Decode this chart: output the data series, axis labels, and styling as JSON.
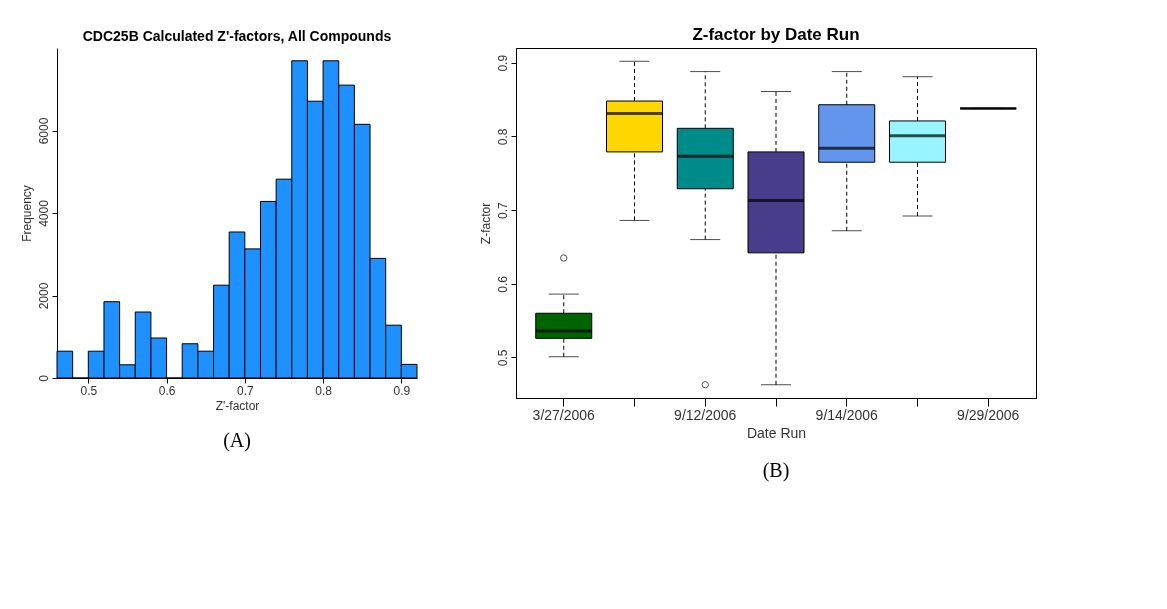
{
  "chart_data": [
    {
      "type": "histogram",
      "title": "CDC25B Calculated Z'-factors, All Compounds",
      "xlabel": "Z'-factor",
      "ylabel": "Frequency",
      "bins": [
        0.46,
        0.48,
        0.5,
        0.52,
        0.54,
        0.56,
        0.58,
        0.6,
        0.62,
        0.64,
        0.66,
        0.68,
        0.7,
        0.72,
        0.74,
        0.76,
        0.78,
        0.8,
        0.82,
        0.84,
        0.86,
        0.88,
        0.9,
        0.92
      ],
      "values": [
        650,
        0,
        650,
        1850,
        320,
        1600,
        970,
        0,
        830,
        650,
        2250,
        3540,
        3130,
        4280,
        4820,
        7690,
        6710,
        7690,
        7100,
        6150,
        2900,
        1280,
        330
      ],
      "color": "#1e90ff",
      "xlim": [
        0.46,
        0.92
      ],
      "xticks": [
        0.5,
        0.6,
        0.7,
        0.8,
        0.9
      ],
      "ylim": [
        0,
        8000
      ],
      "yticks": [
        0,
        2000,
        4000,
        6000
      ],
      "grid": false,
      "annotations": [
        "(A)"
      ]
    },
    {
      "type": "box",
      "title": "Z-factor by Date Run",
      "xlabel": "Date Run",
      "ylabel": "Z-factor",
      "categories": [
        "3/27/2006",
        null,
        "9/12/2006",
        null,
        "9/14/2006",
        null,
        "9/29/2006"
      ],
      "colors": [
        "#006400",
        "#ffd700",
        "#008b8b",
        "#483d8b",
        "#6495ed",
        "#98f5ff",
        "#000000"
      ],
      "boxes": [
        {
          "low": 0.501,
          "q1": 0.526,
          "median": 0.536,
          "q3": 0.56,
          "high": 0.586,
          "outliers": [
            0.635
          ]
        },
        {
          "low": 0.686,
          "q1": 0.779,
          "median": 0.831,
          "q3": 0.848,
          "high": 0.902
        },
        {
          "low": 0.66,
          "q1": 0.729,
          "median": 0.773,
          "q3": 0.811,
          "high": 0.888,
          "outliers": [
            0.463
          ]
        },
        {
          "low": 0.463,
          "q1": 0.642,
          "median": 0.713,
          "q3": 0.779,
          "high": 0.861
        },
        {
          "low": 0.672,
          "q1": 0.765,
          "median": 0.784,
          "q3": 0.843,
          "high": 0.888
        },
        {
          "low": 0.692,
          "q1": 0.765,
          "median": 0.801,
          "q3": 0.821,
          "high": 0.881
        },
        {
          "low": 0.838,
          "q1": 0.838,
          "median": 0.838,
          "q3": 0.838,
          "high": 0.838
        }
      ],
      "ylim": [
        0.445,
        0.92
      ],
      "yticks": [
        0.5,
        0.6,
        0.7,
        0.8,
        0.9
      ],
      "grid": false,
      "annotations": [
        "(B)"
      ]
    }
  ]
}
